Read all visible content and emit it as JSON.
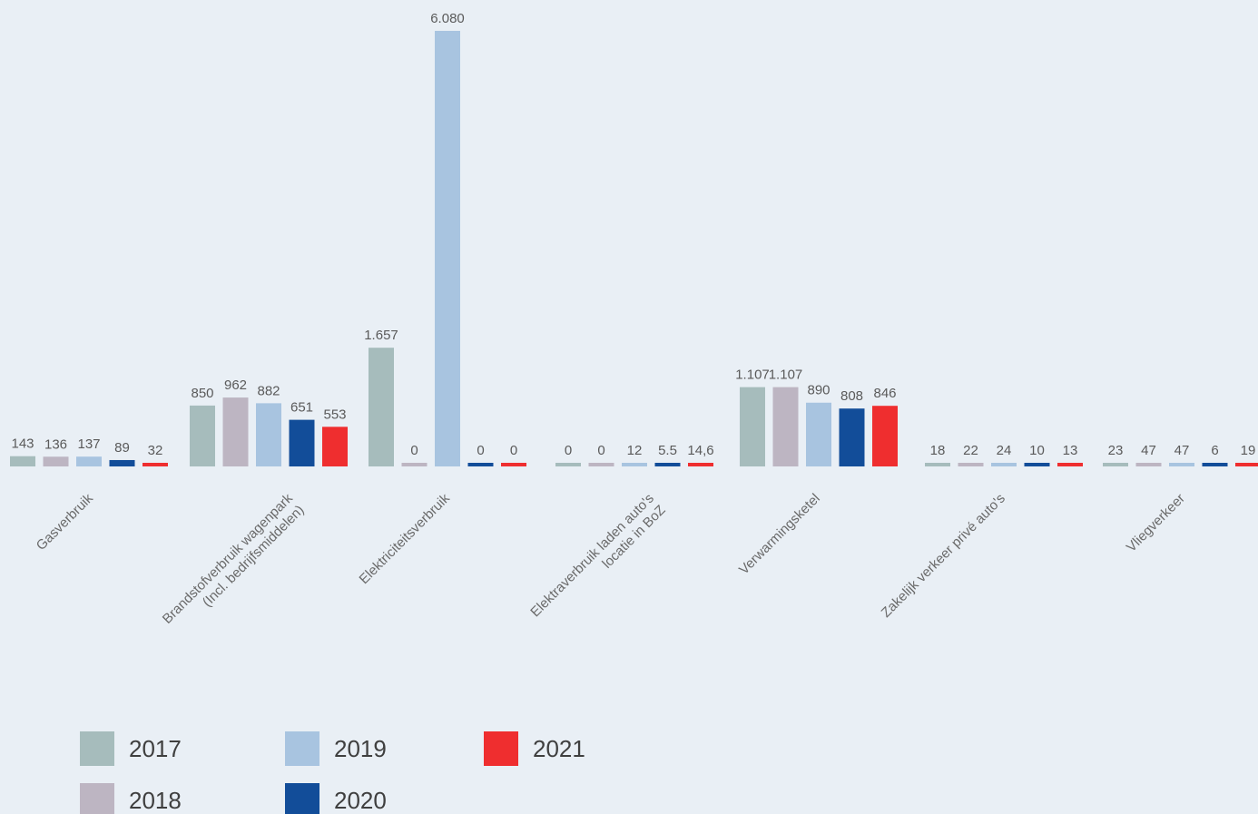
{
  "chart_data": {
    "type": "bar",
    "title": "",
    "xlabel": "",
    "ylabel": "",
    "grid": false,
    "legend_position": "bottom-left",
    "ylim": [
      0,
      6080
    ],
    "categories": [
      [
        "Gasverbruik"
      ],
      [
        "Brandstofverbruik wagenpark",
        "(Incl. bedrijfsmiddelen)"
      ],
      [
        "Elektriciteitsverbruik"
      ],
      [
        "Elektraverbruik laden auto's",
        "locatie in BoZ"
      ],
      [
        "Verwarmingsketel"
      ],
      [
        "Zakelijk verkeer privé auto's"
      ],
      [
        "Vliegverkeer"
      ]
    ],
    "series": [
      {
        "name": "2017",
        "color": "#a6bcbc",
        "values": [
          143,
          850,
          1657,
          0,
          1107,
          18,
          23
        ],
        "labels": [
          "143",
          "850",
          "1.657",
          "0",
          "1.107",
          "18",
          "23"
        ]
      },
      {
        "name": "2018",
        "color": "#bdb5c2",
        "values": [
          136,
          962,
          0,
          0,
          1107,
          22,
          47
        ],
        "labels": [
          "136",
          "962",
          "0",
          "0",
          "1.107",
          "22",
          "47"
        ]
      },
      {
        "name": "2019",
        "color": "#a8c4e0",
        "values": [
          137,
          882,
          6080,
          12,
          890,
          24,
          47
        ],
        "labels": [
          "137",
          "882",
          "6.080",
          "12",
          "890",
          "24",
          "47"
        ]
      },
      {
        "name": "2020",
        "color": "#124d99",
        "values": [
          89,
          651,
          0,
          5.5,
          808,
          10,
          6
        ],
        "labels": [
          "89",
          "651",
          "0",
          "5.5",
          "808",
          "10",
          "6"
        ]
      },
      {
        "name": "2021",
        "color": "#ef2e2f",
        "values": [
          32,
          553,
          0,
          14.6,
          846,
          13,
          19
        ],
        "labels": [
          "32",
          "553",
          "0",
          "14,6",
          "846",
          "13",
          "19"
        ]
      }
    ]
  }
}
